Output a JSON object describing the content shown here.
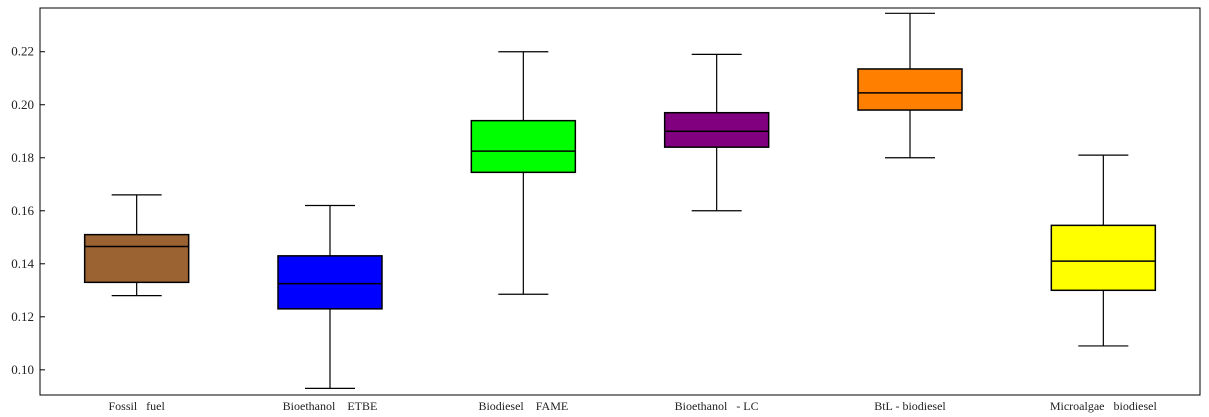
{
  "chart_data": {
    "type": "box",
    "title": "",
    "xlabel": "",
    "ylabel": "",
    "ylim": [
      0.0905,
      0.2365
    ],
    "y_ticks": [
      0.1,
      0.12,
      0.14,
      0.16,
      0.18,
      0.2,
      0.22
    ],
    "y_tick_labels": [
      "0.10",
      "0.12",
      "0.14",
      "0.16",
      "0.18",
      "0.20",
      "0.22"
    ],
    "grid": false,
    "categories": [
      "Fossil   fuel",
      "Bioethanol    ETBE",
      "Biodiesel    FAME",
      "Bioethanol   - LC",
      "BtL - biodiesel",
      "Microalgae   biodiesel"
    ],
    "boxes": [
      {
        "min": 0.128,
        "q1": 0.133,
        "median": 0.1465,
        "q3": 0.151,
        "max": 0.166,
        "color": "#9b6232"
      },
      {
        "min": 0.093,
        "q1": 0.123,
        "median": 0.1325,
        "q3": 0.143,
        "max": 0.162,
        "color": "#0000ff"
      },
      {
        "min": 0.1285,
        "q1": 0.1745,
        "median": 0.1825,
        "q3": 0.194,
        "max": 0.22,
        "color": "#00ff00"
      },
      {
        "min": 0.16,
        "q1": 0.184,
        "median": 0.19,
        "q3": 0.197,
        "max": 0.219,
        "color": "#800080"
      },
      {
        "min": 0.18,
        "q1": 0.198,
        "median": 0.2045,
        "q3": 0.2135,
        "max": 0.2345,
        "color": "#ff8000"
      },
      {
        "min": 0.109,
        "q1": 0.13,
        "median": 0.141,
        "q3": 0.1545,
        "max": 0.181,
        "color": "#ffff00"
      }
    ]
  }
}
